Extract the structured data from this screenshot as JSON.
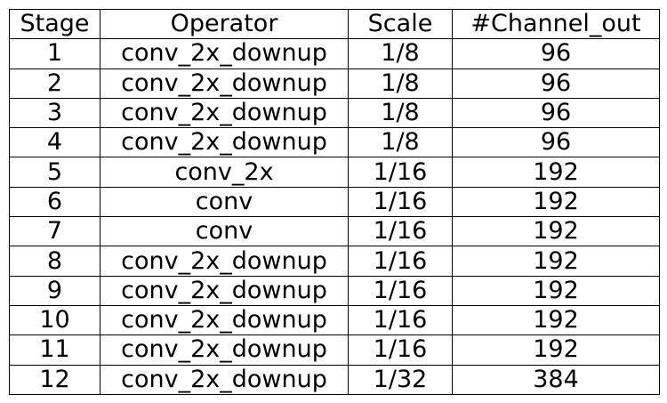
{
  "table": {
    "headers": [
      "Stage",
      "Operator",
      "Scale",
      "#Channel_out"
    ],
    "rows": [
      [
        "1",
        "conv_2x_downup",
        "1/8",
        "96"
      ],
      [
        "2",
        "conv_2x_downup",
        "1/8",
        "96"
      ],
      [
        "3",
        "conv_2x_downup",
        "1/8",
        "96"
      ],
      [
        "4",
        "conv_2x_downup",
        "1/8",
        "96"
      ],
      [
        "5",
        "conv_2x",
        "1/16",
        "192"
      ],
      [
        "6",
        "conv",
        "1/16",
        "192"
      ],
      [
        "7",
        "conv",
        "1/16",
        "192"
      ],
      [
        "8",
        "conv_2x_downup",
        "1/16",
        "192"
      ],
      [
        "9",
        "conv_2x_downup",
        "1/16",
        "192"
      ],
      [
        "10",
        "conv_2x_downup",
        "1/16",
        "192"
      ],
      [
        "11",
        "conv_2x_downup",
        "1/16",
        "192"
      ],
      [
        "12",
        "conv_2x_downup",
        "1/32",
        "384"
      ]
    ]
  }
}
